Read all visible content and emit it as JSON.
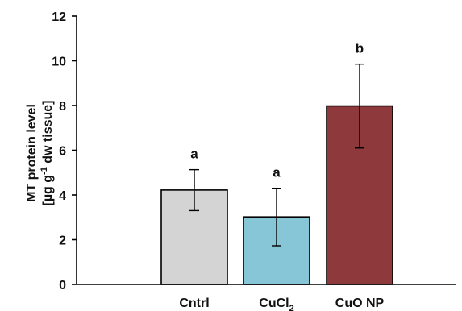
{
  "chart_data": {
    "type": "bar",
    "categories": [
      "Cntrl",
      "CuCl2",
      "CuO NP"
    ],
    "category_labels": [
      {
        "base": "Cntrl",
        "sub": ""
      },
      {
        "base": "CuCl",
        "sub": "2"
      },
      {
        "base": "CuO NP",
        "sub": ""
      }
    ],
    "values": [
      4.22,
      3.02,
      7.98
    ],
    "error_high": [
      5.13,
      4.3,
      9.85
    ],
    "error_low": [
      3.3,
      1.73,
      6.1
    ],
    "significance": [
      "a",
      "a",
      "b"
    ],
    "colors": [
      "#d4d4d4",
      "#86c6d6",
      "#8e3a3c"
    ],
    "ylim": [
      0,
      12
    ],
    "yticks": [
      0,
      2,
      4,
      6,
      8,
      10,
      12
    ],
    "ylabel_line1": "MT protein level",
    "ylabel_line2_a": "[µg  g",
    "ylabel_line2_sup": "-1",
    "ylabel_line2_b": " dw tissue]",
    "xlabel": "",
    "title": "",
    "grid": false
  }
}
